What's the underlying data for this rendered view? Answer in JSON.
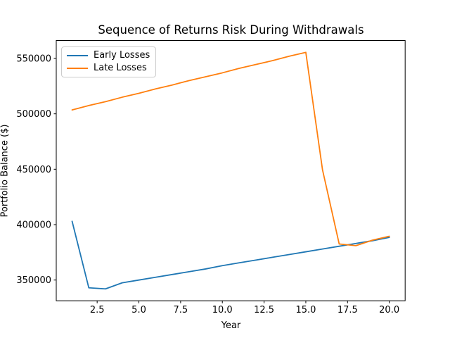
{
  "chart_data": {
    "type": "line",
    "title": "Sequence of Returns Risk During Withdrawals",
    "xlabel": "Year",
    "ylabel": "Portfolio Balance ($)",
    "x": [
      1,
      2,
      3,
      4,
      5,
      6,
      7,
      8,
      9,
      10,
      11,
      12,
      13,
      14,
      15,
      16,
      17,
      18,
      19,
      20
    ],
    "series": [
      {
        "name": "Early Losses",
        "color": "#1f77b4",
        "values": [
          403000,
          343000,
          342000,
          347500,
          350000,
          352500,
          355000,
          357500,
          360000,
          363000,
          365500,
          368000,
          370500,
          373000,
          375500,
          378000,
          380500,
          383000,
          385500,
          388500
        ]
      },
      {
        "name": "Late Losses",
        "color": "#ff7f0e",
        "values": [
          503500,
          507500,
          511000,
          515000,
          518500,
          522500,
          526000,
          530000,
          533500,
          537000,
          541000,
          544500,
          548000,
          552000,
          555500,
          449500,
          382500,
          381000,
          386000,
          389500
        ]
      }
    ],
    "xlim": [
      0.05,
      20.95
    ],
    "ylim": [
      331300,
      566200
    ],
    "x_tick_values": [
      2.5,
      5,
      7.5,
      10,
      12.5,
      15,
      17.5,
      20
    ],
    "x_tick_labels": [
      "2.5",
      "5.0",
      "7.5",
      "10.0",
      "12.5",
      "15.0",
      "17.5",
      "20.0"
    ],
    "y_tick_values": [
      350000,
      400000,
      450000,
      500000,
      550000
    ],
    "y_tick_labels": [
      "350000",
      "400000",
      "450000",
      "500000",
      "550000"
    ],
    "grid": false,
    "legend": {
      "position": "upper left"
    },
    "axis_color": "#000000",
    "background_color": "#ffffff"
  }
}
